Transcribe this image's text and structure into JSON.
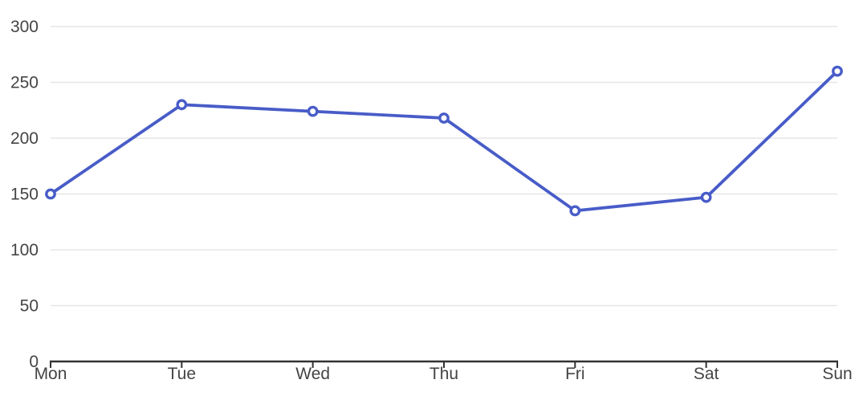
{
  "chart_data": {
    "type": "line",
    "categories": [
      "Mon",
      "Tue",
      "Wed",
      "Thu",
      "Fri",
      "Sat",
      "Sun"
    ],
    "values": [
      150,
      230,
      224,
      218,
      135,
      147,
      260
    ],
    "series": [
      {
        "name": "",
        "values": [
          150,
          230,
          224,
          218,
          135,
          147,
          260
        ]
      }
    ],
    "title": "",
    "xlabel": "",
    "ylabel": "",
    "ylim": [
      0,
      300
    ],
    "y_ticks": [
      0,
      50,
      100,
      150,
      200,
      250,
      300
    ],
    "grid": true,
    "legend": false,
    "legend_position": "none",
    "marker_shape": "circle-hollow"
  },
  "colors": {
    "accent": "#485cc8",
    "marker_fill": "#ffffff",
    "grid": "#e6e6e6",
    "axis": "#333333",
    "label": "#444444",
    "background": "#ffffff"
  }
}
